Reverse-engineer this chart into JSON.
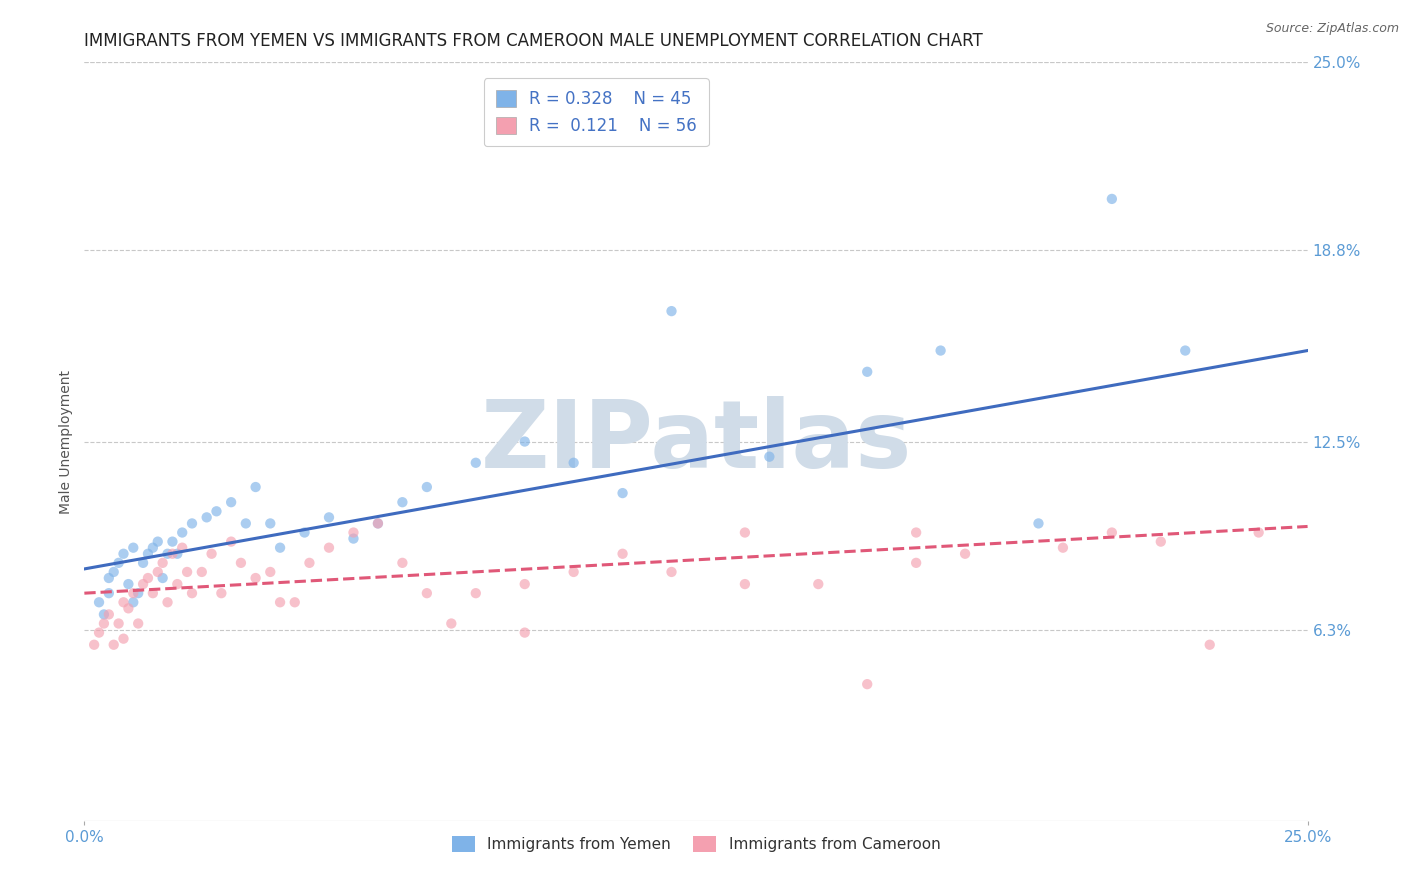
{
  "title": "IMMIGRANTS FROM YEMEN VS IMMIGRANTS FROM CAMEROON MALE UNEMPLOYMENT CORRELATION CHART",
  "source": "Source: ZipAtlas.com",
  "ylabel": "Male Unemployment",
  "xlim": [
    0.0,
    0.25
  ],
  "ylim": [
    0.0,
    0.25
  ],
  "xtick_positions": [
    0.0,
    0.25
  ],
  "xtick_labels": [
    "0.0%",
    "25.0%"
  ],
  "ytick_values": [
    0.063,
    0.125,
    0.188,
    0.25
  ],
  "ytick_labels": [
    "6.3%",
    "12.5%",
    "18.8%",
    "25.0%"
  ],
  "tick_color": "#5b9bd5",
  "grid_color": "#c8c8c8",
  "background_color": "#ffffff",
  "watermark_text": "ZIPatlas",
  "watermark_color": "#d0dce8",
  "series": [
    {
      "name": "Immigrants from Yemen",
      "color": "#7fb3e8",
      "R": 0.328,
      "N": 45,
      "x": [
        0.003,
        0.004,
        0.005,
        0.005,
        0.006,
        0.007,
        0.008,
        0.009,
        0.01,
        0.01,
        0.011,
        0.012,
        0.013,
        0.014,
        0.015,
        0.016,
        0.017,
        0.018,
        0.019,
        0.02,
        0.022,
        0.025,
        0.027,
        0.03,
        0.033,
        0.035,
        0.038,
        0.04,
        0.045,
        0.05,
        0.055,
        0.06,
        0.065,
        0.07,
        0.08,
        0.09,
        0.1,
        0.11,
        0.12,
        0.14,
        0.16,
        0.175,
        0.195,
        0.21,
        0.225
      ],
      "y": [
        0.072,
        0.068,
        0.075,
        0.08,
        0.082,
        0.085,
        0.088,
        0.078,
        0.072,
        0.09,
        0.075,
        0.085,
        0.088,
        0.09,
        0.092,
        0.08,
        0.088,
        0.092,
        0.088,
        0.095,
        0.098,
        0.1,
        0.102,
        0.105,
        0.098,
        0.11,
        0.098,
        0.09,
        0.095,
        0.1,
        0.093,
        0.098,
        0.105,
        0.11,
        0.118,
        0.125,
        0.118,
        0.108,
        0.168,
        0.12,
        0.148,
        0.155,
        0.098,
        0.205,
        0.155
      ],
      "trend_x": [
        0.0,
        0.25
      ],
      "trend_y": [
        0.083,
        0.155
      ],
      "trend_style": "solid",
      "line_color": "#3f6bbf"
    },
    {
      "name": "Immigrants from Cameroon",
      "color": "#f4a0b0",
      "R": 0.121,
      "N": 56,
      "x": [
        0.002,
        0.003,
        0.004,
        0.005,
        0.006,
        0.007,
        0.008,
        0.008,
        0.009,
        0.01,
        0.011,
        0.012,
        0.013,
        0.014,
        0.015,
        0.016,
        0.017,
        0.018,
        0.019,
        0.02,
        0.021,
        0.022,
        0.024,
        0.026,
        0.028,
        0.03,
        0.032,
        0.035,
        0.038,
        0.04,
        0.043,
        0.046,
        0.05,
        0.055,
        0.06,
        0.065,
        0.07,
        0.075,
        0.08,
        0.09,
        0.1,
        0.11,
        0.12,
        0.135,
        0.15,
        0.16,
        0.17,
        0.18,
        0.2,
        0.21,
        0.22,
        0.23,
        0.24,
        0.17,
        0.09,
        0.135
      ],
      "y": [
        0.058,
        0.062,
        0.065,
        0.068,
        0.058,
        0.065,
        0.072,
        0.06,
        0.07,
        0.075,
        0.065,
        0.078,
        0.08,
        0.075,
        0.082,
        0.085,
        0.072,
        0.088,
        0.078,
        0.09,
        0.082,
        0.075,
        0.082,
        0.088,
        0.075,
        0.092,
        0.085,
        0.08,
        0.082,
        0.072,
        0.072,
        0.085,
        0.09,
        0.095,
        0.098,
        0.085,
        0.075,
        0.065,
        0.075,
        0.078,
        0.082,
        0.088,
        0.082,
        0.095,
        0.078,
        0.045,
        0.085,
        0.088,
        0.09,
        0.095,
        0.092,
        0.058,
        0.095,
        0.095,
        0.062,
        0.078
      ],
      "trend_x": [
        0.0,
        0.25
      ],
      "trend_y": [
        0.075,
        0.097
      ],
      "trend_style": "dashed",
      "line_color": "#e05878"
    }
  ],
  "title_fontsize": 12,
  "axis_label_fontsize": 10,
  "tick_fontsize": 11,
  "legend_fontsize": 12,
  "scatter_size": 55,
  "scatter_alpha": 0.65,
  "line_width": 2.2
}
